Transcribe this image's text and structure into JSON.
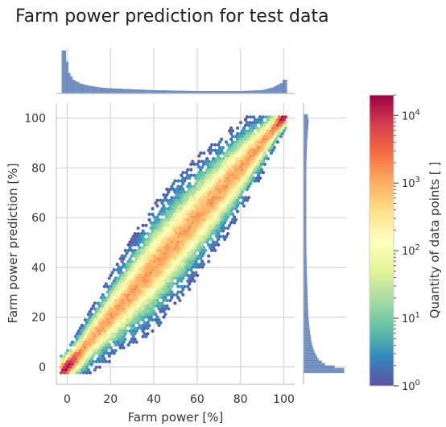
{
  "chart_data": {
    "type": "heatmap",
    "subtype": "hexbin-jointplot",
    "title": "Farm power prediction for test data",
    "xlabel": "Farm power [%]",
    "ylabel": "Farm power prediction [%]",
    "xlim": [
      -5,
      105
    ],
    "ylim": [
      -7,
      106
    ],
    "xticks": [
      "0",
      "20",
      "40",
      "60",
      "80",
      "100"
    ],
    "yticks": [
      "0",
      "20",
      "40",
      "60",
      "80",
      "100"
    ],
    "grid": true,
    "trend": "predictions cluster along the y = x diagonal; spread widest around 20–80%",
    "spread_band": [
      {
        "x": 0,
        "lo": -2,
        "hi": 14
      },
      {
        "x": 20,
        "lo": 6,
        "hi": 40
      },
      {
        "x": 40,
        "lo": 20,
        "hi": 70
      },
      {
        "x": 60,
        "lo": 40,
        "hi": 88
      },
      {
        "x": 80,
        "lo": 60,
        "hi": 97
      },
      {
        "x": 100,
        "lo": 88,
        "hi": 101
      }
    ],
    "density_peaks": [
      {
        "x": 0,
        "y": 0,
        "count": 10000
      },
      {
        "x": 100,
        "y": 100,
        "count": 10000
      }
    ],
    "marginal_x": {
      "range": [
        -2,
        101
      ],
      "bins": [
        {
          "x": -1,
          "height": 0.95
        },
        {
          "x": 1,
          "height": 0.45
        },
        {
          "x": 3,
          "height": 0.3
        },
        {
          "x": 6,
          "height": 0.22
        },
        {
          "x": 10,
          "height": 0.17
        },
        {
          "x": 15,
          "height": 0.13
        },
        {
          "x": 20,
          "height": 0.11
        },
        {
          "x": 30,
          "height": 0.09
        },
        {
          "x": 40,
          "height": 0.07
        },
        {
          "x": 50,
          "height": 0.06
        },
        {
          "x": 60,
          "height": 0.05
        },
        {
          "x": 70,
          "height": 0.05
        },
        {
          "x": 80,
          "height": 0.05
        },
        {
          "x": 90,
          "height": 0.07
        },
        {
          "x": 95,
          "height": 0.13
        },
        {
          "x": 99,
          "height": 0.23
        },
        {
          "x": 100,
          "height": 0.3
        }
      ]
    },
    "marginal_y": {
      "range": [
        -2,
        101
      ],
      "bins": [
        {
          "y": -1,
          "width": 0.95
        },
        {
          "y": 1,
          "width": 0.5
        },
        {
          "y": 3,
          "width": 0.35
        },
        {
          "y": 6,
          "width": 0.25
        },
        {
          "y": 10,
          "width": 0.18
        },
        {
          "y": 15,
          "width": 0.14
        },
        {
          "y": 20,
          "width": 0.11
        },
        {
          "y": 30,
          "width": 0.09
        },
        {
          "y": 40,
          "width": 0.07
        },
        {
          "y": 50,
          "width": 0.06
        },
        {
          "y": 60,
          "width": 0.06
        },
        {
          "y": 70,
          "width": 0.06
        },
        {
          "y": 80,
          "width": 0.06
        },
        {
          "y": 90,
          "width": 0.08
        },
        {
          "y": 95,
          "width": 0.1
        },
        {
          "y": 99,
          "width": 0.12
        },
        {
          "y": 100,
          "width": 0.1
        }
      ]
    },
    "colorbar": {
      "label": "Quantity of data points [ ]",
      "scale": "log",
      "range": [
        1,
        20000
      ],
      "ticks": [
        {
          "base": "10",
          "exp": "0",
          "value": 1
        },
        {
          "base": "10",
          "exp": "1",
          "value": 10
        },
        {
          "base": "10",
          "exp": "2",
          "value": 100
        },
        {
          "base": "10",
          "exp": "3",
          "value": 1000
        },
        {
          "base": "10",
          "exp": "4",
          "value": 10000
        }
      ],
      "colormap": "Spectral_r",
      "colors": [
        "#5e4fa2",
        "#3288bd",
        "#66c2a5",
        "#abdda4",
        "#e6f598",
        "#ffffbf",
        "#fee08b",
        "#fdae61",
        "#f46d43",
        "#d53e4f",
        "#9e0142"
      ]
    },
    "marginal_color": "#4c72b0"
  }
}
